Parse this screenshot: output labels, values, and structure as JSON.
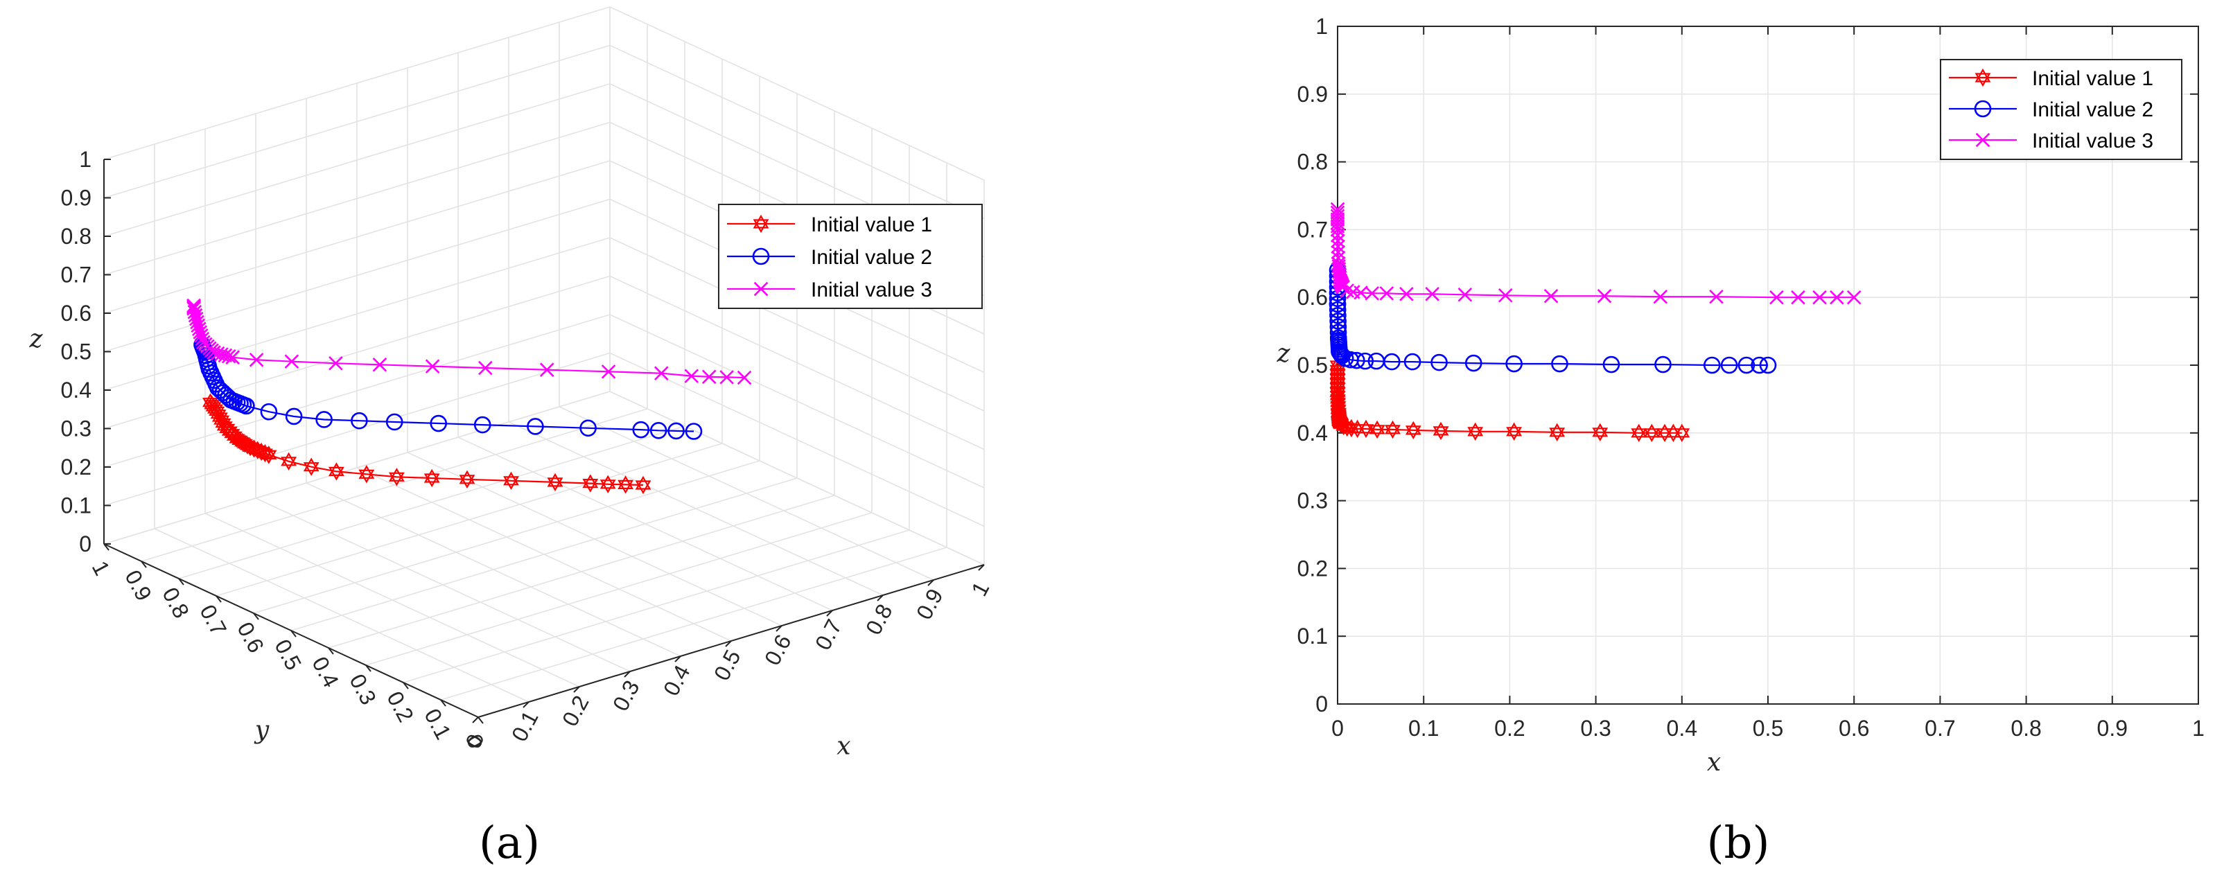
{
  "panels": {
    "a": {
      "label": "(a)"
    },
    "b": {
      "label": "(b)"
    }
  },
  "chart_data": [
    {
      "type": "line",
      "projection": "3d",
      "xlabel": "x",
      "ylabel": "y",
      "zlabel": "z",
      "xlim": [
        0,
        1
      ],
      "ylim": [
        0,
        1
      ],
      "zlim": [
        0,
        1
      ],
      "x_ticks": [
        "0",
        "0.1",
        "0.2",
        "0.3",
        "0.4",
        "0.5",
        "0.6",
        "0.7",
        "0.8",
        "0.9",
        "1"
      ],
      "y_ticks": [
        "0",
        "0.1",
        "0.2",
        "0.3",
        "0.4",
        "0.5",
        "0.6",
        "0.7",
        "0.8",
        "0.9",
        "1"
      ],
      "z_ticks": [
        "0",
        "0.1",
        "0.2",
        "0.3",
        "0.4",
        "0.5",
        "0.6",
        "0.7",
        "0.8",
        "0.9",
        "1"
      ],
      "grid": true,
      "legend_position": "top-right",
      "series": [
        {
          "name": "Initial value 1",
          "color": "#ff0000",
          "marker": "hexagram",
          "points": [
            [
              0.4,
              0.1,
              0.4
            ],
            [
              0.38,
              0.12,
              0.4
            ],
            [
              0.36,
              0.14,
              0.4
            ],
            [
              0.34,
              0.16,
              0.401
            ],
            [
              0.3,
              0.2,
              0.402
            ],
            [
              0.25,
              0.25,
              0.403
            ],
            [
              0.2,
              0.3,
              0.404
            ],
            [
              0.16,
              0.34,
              0.405
            ],
            [
              0.12,
              0.38,
              0.406
            ],
            [
              0.09,
              0.42,
              0.407
            ],
            [
              0.06,
              0.46,
              0.408
            ],
            [
              0.04,
              0.5,
              0.41
            ],
            [
              0.025,
              0.54,
              0.412
            ],
            [
              0.015,
              0.58,
              0.415
            ],
            [
              0.008,
              0.62,
              0.42
            ],
            [
              0.004,
              0.65,
              0.43
            ],
            [
              0.002,
              0.68,
              0.45
            ],
            [
              0.001,
              0.7,
              0.48
            ],
            [
              0.0,
              0.72,
              0.5
            ]
          ]
        },
        {
          "name": "Initial value 2",
          "color": "#0000ff",
          "marker": "circle",
          "points": [
            [
              0.5,
              0.1,
              0.5
            ],
            [
              0.48,
              0.12,
              0.5
            ],
            [
              0.46,
              0.14,
              0.5
            ],
            [
              0.44,
              0.16,
              0.501
            ],
            [
              0.38,
              0.22,
              0.502
            ],
            [
              0.32,
              0.28,
              0.503
            ],
            [
              0.26,
              0.34,
              0.504
            ],
            [
              0.21,
              0.39,
              0.505
            ],
            [
              0.16,
              0.44,
              0.506
            ],
            [
              0.12,
              0.48,
              0.507
            ],
            [
              0.08,
              0.52,
              0.508
            ],
            [
              0.05,
              0.56,
              0.51
            ],
            [
              0.03,
              0.6,
              0.512
            ],
            [
              0.015,
              0.64,
              0.515
            ],
            [
              0.007,
              0.67,
              0.52
            ],
            [
              0.003,
              0.7,
              0.54
            ],
            [
              0.001,
              0.72,
              0.58
            ],
            [
              0.0,
              0.73,
              0.62
            ],
            [
              0.0,
              0.74,
              0.64
            ]
          ]
        },
        {
          "name": "Initial value 3",
          "color": "#ff00ff",
          "marker": "x",
          "points": [
            [
              0.6,
              0.1,
              0.6
            ],
            [
              0.58,
              0.12,
              0.6
            ],
            [
              0.56,
              0.14,
              0.6
            ],
            [
              0.54,
              0.16,
              0.601
            ],
            [
              0.51,
              0.2,
              0.602
            ],
            [
              0.45,
              0.26,
              0.603
            ],
            [
              0.38,
              0.33,
              0.604
            ],
            [
              0.31,
              0.4,
              0.605
            ],
            [
              0.25,
              0.46,
              0.606
            ],
            [
              0.19,
              0.52,
              0.607
            ],
            [
              0.14,
              0.57,
              0.608
            ],
            [
              0.09,
              0.62,
              0.61
            ],
            [
              0.05,
              0.66,
              0.612
            ],
            [
              0.025,
              0.69,
              0.615
            ],
            [
              0.01,
              0.72,
              0.62
            ],
            [
              0.004,
              0.74,
              0.64
            ],
            [
              0.001,
              0.75,
              0.68
            ],
            [
              0.0,
              0.76,
              0.72
            ],
            [
              0.0,
              0.76,
              0.73
            ]
          ]
        }
      ]
    },
    {
      "type": "line",
      "xlabel": "x",
      "ylabel": "z",
      "xlim": [
        0,
        1
      ],
      "ylim": [
        0,
        1
      ],
      "x_ticks": [
        "0",
        "0.1",
        "0.2",
        "0.3",
        "0.4",
        "0.5",
        "0.6",
        "0.7",
        "0.8",
        "0.9",
        "1"
      ],
      "y_ticks": [
        "0",
        "0.1",
        "0.2",
        "0.3",
        "0.4",
        "0.5",
        "0.6",
        "0.7",
        "0.8",
        "0.9",
        "1"
      ],
      "grid": true,
      "legend_position": "top-right",
      "series": [
        {
          "name": "Initial value 1",
          "color": "#ff0000",
          "marker": "hexagram",
          "x": [
            0.4,
            0.39,
            0.38,
            0.365,
            0.35,
            0.305,
            0.255,
            0.205,
            0.16,
            0.12,
            0.088,
            0.064,
            0.046,
            0.033,
            0.023,
            0.016,
            0.011,
            0.007,
            0.004,
            0.002,
            0.001,
            0.0,
            0.0
          ],
          "y": [
            0.4,
            0.4,
            0.4,
            0.4,
            0.4,
            0.401,
            0.401,
            0.402,
            0.402,
            0.403,
            0.404,
            0.405,
            0.405,
            0.406,
            0.406,
            0.407,
            0.408,
            0.41,
            0.413,
            0.418,
            0.43,
            0.46,
            0.5
          ]
        },
        {
          "name": "Initial value 2",
          "color": "#0000ff",
          "marker": "circle",
          "x": [
            0.5,
            0.49,
            0.475,
            0.455,
            0.435,
            0.378,
            0.318,
            0.258,
            0.205,
            0.158,
            0.118,
            0.087,
            0.063,
            0.045,
            0.032,
            0.022,
            0.015,
            0.009,
            0.005,
            0.002,
            0.001,
            0.0,
            0.0
          ],
          "y": [
            0.5,
            0.5,
            0.5,
            0.5,
            0.5,
            0.501,
            0.501,
            0.502,
            0.502,
            0.503,
            0.504,
            0.505,
            0.505,
            0.506,
            0.506,
            0.507,
            0.508,
            0.51,
            0.514,
            0.52,
            0.54,
            0.59,
            0.64
          ]
        },
        {
          "name": "Initial value 3",
          "color": "#ff00ff",
          "marker": "x",
          "x": [
            0.6,
            0.58,
            0.56,
            0.535,
            0.51,
            0.44,
            0.375,
            0.31,
            0.248,
            0.195,
            0.148,
            0.11,
            0.08,
            0.057,
            0.04,
            0.027,
            0.018,
            0.011,
            0.006,
            0.003,
            0.001,
            0.0,
            0.0
          ],
          "y": [
            0.6,
            0.6,
            0.6,
            0.6,
            0.6,
            0.601,
            0.601,
            0.602,
            0.602,
            0.603,
            0.604,
            0.605,
            0.605,
            0.606,
            0.606,
            0.607,
            0.608,
            0.61,
            0.615,
            0.625,
            0.65,
            0.7,
            0.73
          ]
        }
      ]
    }
  ]
}
